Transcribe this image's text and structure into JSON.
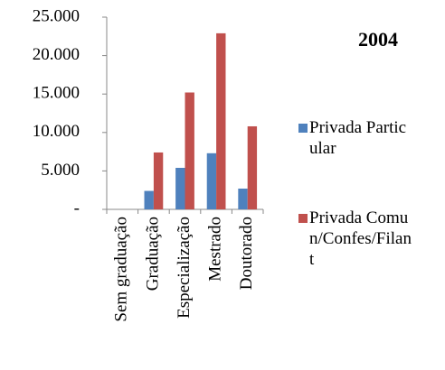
{
  "chart_data": {
    "type": "bar",
    "title": "2004",
    "categories": [
      "Sem graduação",
      "Graduação",
      "Especialização",
      "Mestrado",
      "Doutorado"
    ],
    "series": [
      {
        "name": "Privada Particular",
        "color": "#4f81bd",
        "values": [
          0,
          2400,
          5400,
          7300,
          2700
        ]
      },
      {
        "name": "Privada Comun/Confes/Filant",
        "color": "#c0504d",
        "values": [
          0,
          7400,
          15200,
          22900,
          10800
        ]
      }
    ],
    "ylim": [
      0,
      25000
    ],
    "yticks": [
      {
        "value": 0,
        "label": "-"
      },
      {
        "value": 5000,
        "label": "5.000"
      },
      {
        "value": 10000,
        "label": "10.000"
      },
      {
        "value": 15000,
        "label": "15.000"
      },
      {
        "value": 20000,
        "label": "20.000"
      },
      {
        "value": 25000,
        "label": "25.000"
      }
    ],
    "grid": false,
    "legend": "right"
  }
}
